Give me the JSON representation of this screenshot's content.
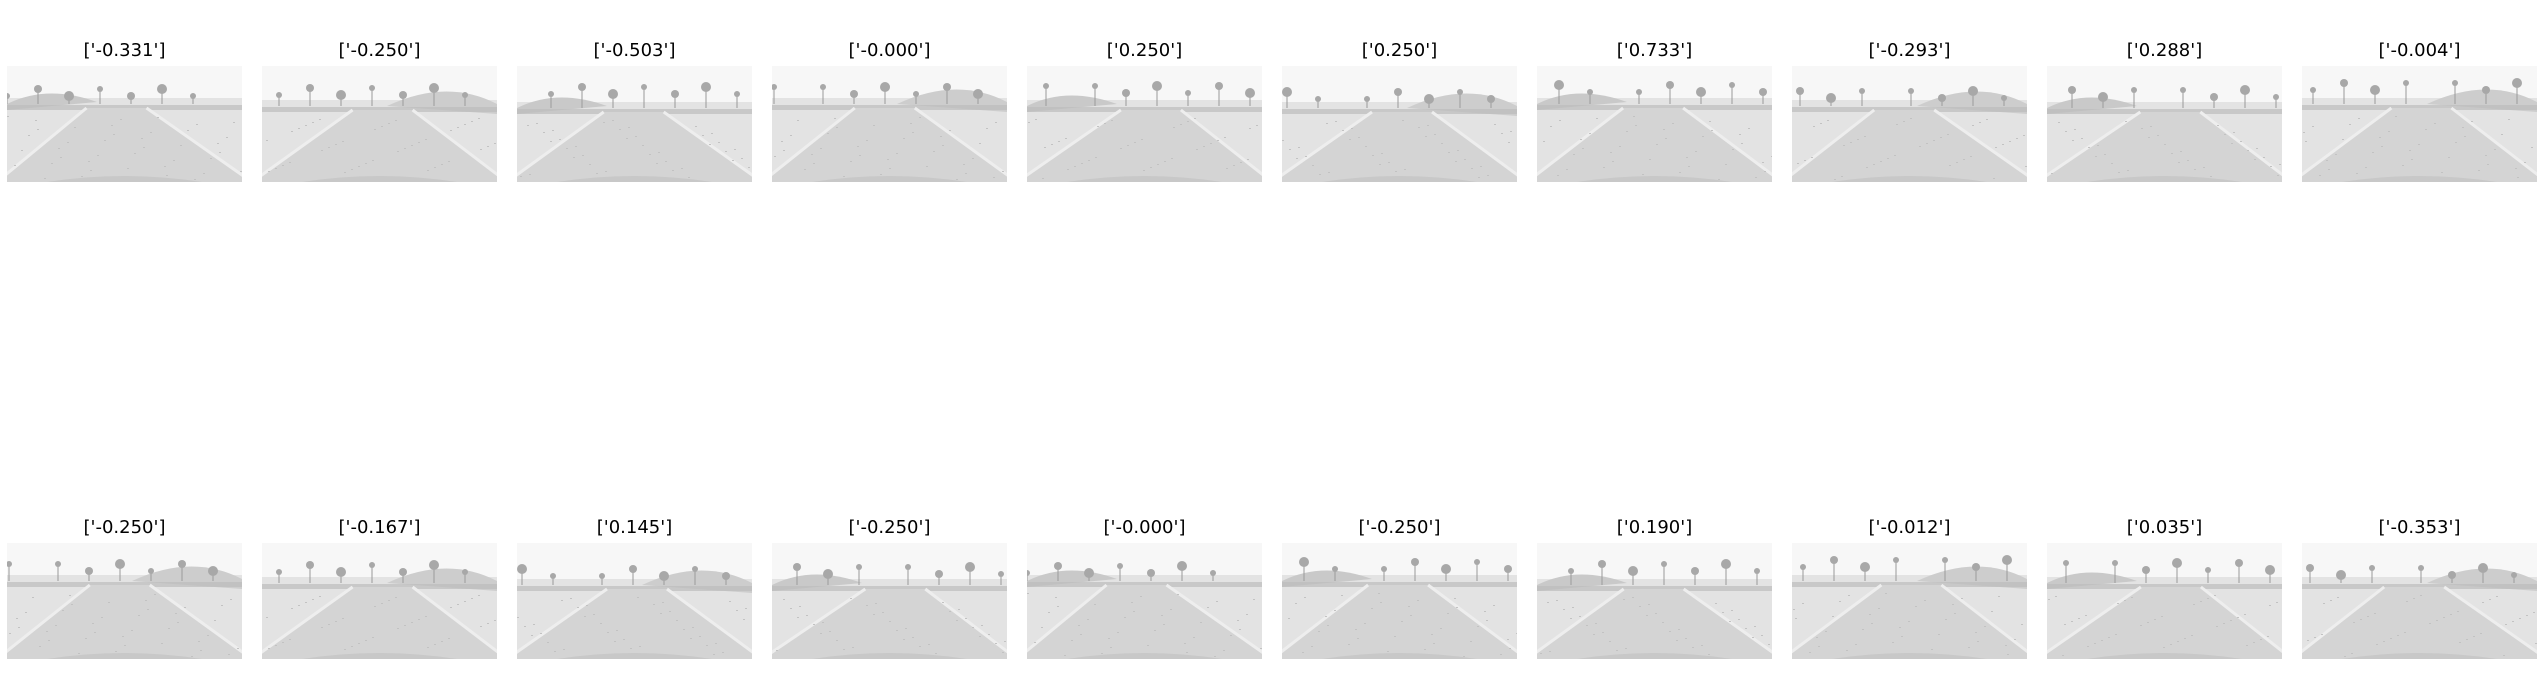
{
  "frames": [
    {
      "label": "['-0.331']",
      "variant": 0
    },
    {
      "label": "['-0.250']",
      "variant": 1
    },
    {
      "label": "['-0.503']",
      "variant": 2
    },
    {
      "label": "['-0.000']",
      "variant": 3
    },
    {
      "label": "['0.250']",
      "variant": 4
    },
    {
      "label": "['0.250']",
      "variant": 5
    },
    {
      "label": "['0.733']",
      "variant": 6
    },
    {
      "label": "['-0.293']",
      "variant": 7
    },
    {
      "label": "['0.288']",
      "variant": 8
    },
    {
      "label": "['-0.004']",
      "variant": 9
    },
    {
      "label": "['-0.250']",
      "variant": 3
    },
    {
      "label": "['-0.167']",
      "variant": 1
    },
    {
      "label": "['0.145']",
      "variant": 5
    },
    {
      "label": "['-0.250']",
      "variant": 8
    },
    {
      "label": "['-0.000']",
      "variant": 0
    },
    {
      "label": "['-0.250']",
      "variant": 6
    },
    {
      "label": "['0.190']",
      "variant": 2
    },
    {
      "label": "['-0.012']",
      "variant": 9
    },
    {
      "label": "['0.035']",
      "variant": 4
    },
    {
      "label": "['-0.353']",
      "variant": 7
    }
  ]
}
